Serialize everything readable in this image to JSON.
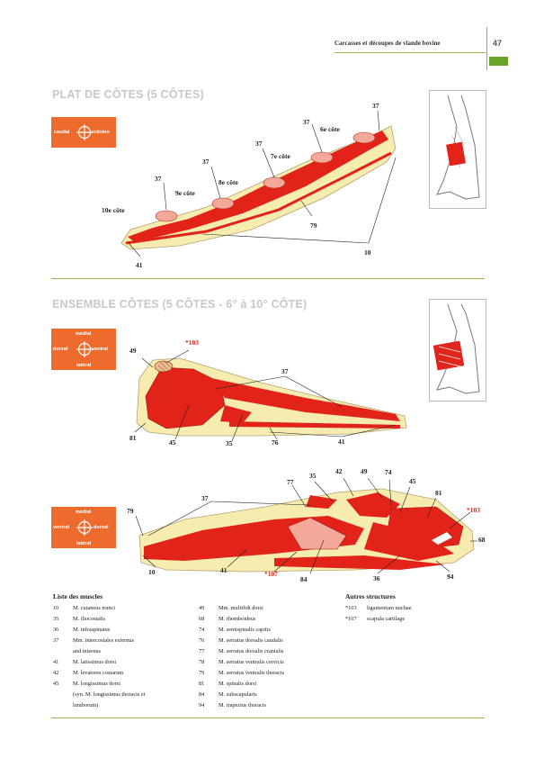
{
  "header": {
    "title": "Carcasses et découpes de viande bovine",
    "page": "47"
  },
  "section1": {
    "title": "PLAT DE CÔTES (5 CÔTES)",
    "orientation": {
      "left": "caudal",
      "right": "crânien"
    },
    "labels": {
      "c10": "10e côte",
      "c9": "9e côte",
      "c8": "8e côte",
      "c7": "7e côte",
      "c6": "6e côte",
      "n37a": "37",
      "n37b": "37",
      "n37c": "37",
      "n37d": "37",
      "n37e": "37",
      "n79": "79",
      "n41": "41",
      "n10": "10"
    }
  },
  "section2": {
    "title": "ENSEMBLE CÔTES (5 CÔTES - 6° à 10° CÔTE)",
    "orientation1": {
      "top": "médial",
      "left": "dorsal",
      "right": "ventral",
      "bottom": "latéral"
    },
    "orientation2": {
      "top": "médial",
      "left": "ventral",
      "right": "dorsal",
      "bottom": "latéral"
    },
    "labels1": {
      "n49": "49",
      "n103": "*103",
      "n37": "37",
      "n81": "81",
      "n45": "45",
      "n35": "35",
      "n76": "76",
      "n41": "41"
    },
    "labels2": {
      "n77": "77",
      "n35": "35",
      "n42": "42",
      "n49": "49",
      "n74": "74",
      "n45": "45",
      "n37": "37",
      "n79": "79",
      "n81": "81",
      "n103": "*103",
      "n68": "68",
      "n10": "10",
      "n41": "41",
      "n107": "*107",
      "n84": "84",
      "n36": "36",
      "n94": "94"
    }
  },
  "legend": {
    "title": "Liste des muscles",
    "col1": [
      {
        "num": "10",
        "text": "M. cutaneus trunci"
      },
      {
        "num": "35",
        "text": "M. iliocostalis"
      },
      {
        "num": "36",
        "text": "M. infraspinatus"
      },
      {
        "num": "37",
        "text": "Mm. intercostales externus"
      },
      {
        "num": "",
        "text": "and internus"
      },
      {
        "num": "41",
        "text": "M. latissimus dorsi"
      },
      {
        "num": "42",
        "text": "M. levatores costarum"
      },
      {
        "num": "45",
        "text": "M. longissimus dorsi"
      },
      {
        "num": "",
        "text": "(syn. M. longissimus thoracis et"
      },
      {
        "num": "",
        "text": "lumborum)"
      }
    ],
    "col2": [
      {
        "num": "49",
        "text": "Mm. multifidi dorsi"
      },
      {
        "num": "68",
        "text": "M. rhomboideus"
      },
      {
        "num": "74",
        "text": "M. semispinalis capitis"
      },
      {
        "num": "76",
        "text": "M. serratus dorsalis caudalis"
      },
      {
        "num": "77",
        "text": "M. serratus dorsalis cranialis"
      },
      {
        "num": "78",
        "text": "M. serratus ventralis cervicis"
      },
      {
        "num": "79",
        "text": "M. serratus ventralis thoracis"
      },
      {
        "num": "81",
        "text": "M. spinalis dorsi"
      },
      {
        "num": "84",
        "text": "M. subscapularis"
      },
      {
        "num": "94",
        "text": "M. trapezius thoracis"
      }
    ],
    "other_title": "Autres structures",
    "other": [
      {
        "num": "*103",
        "text": "ligamentum nuchae"
      },
      {
        "num": "*107",
        "text": "scapula cartilage"
      }
    ]
  },
  "colors": {
    "accent": "#ec6b2d",
    "green": "#8ab840",
    "meat": "#e2231a",
    "fat": "#f6ecb0",
    "title_grey": "#c8c8c8"
  }
}
